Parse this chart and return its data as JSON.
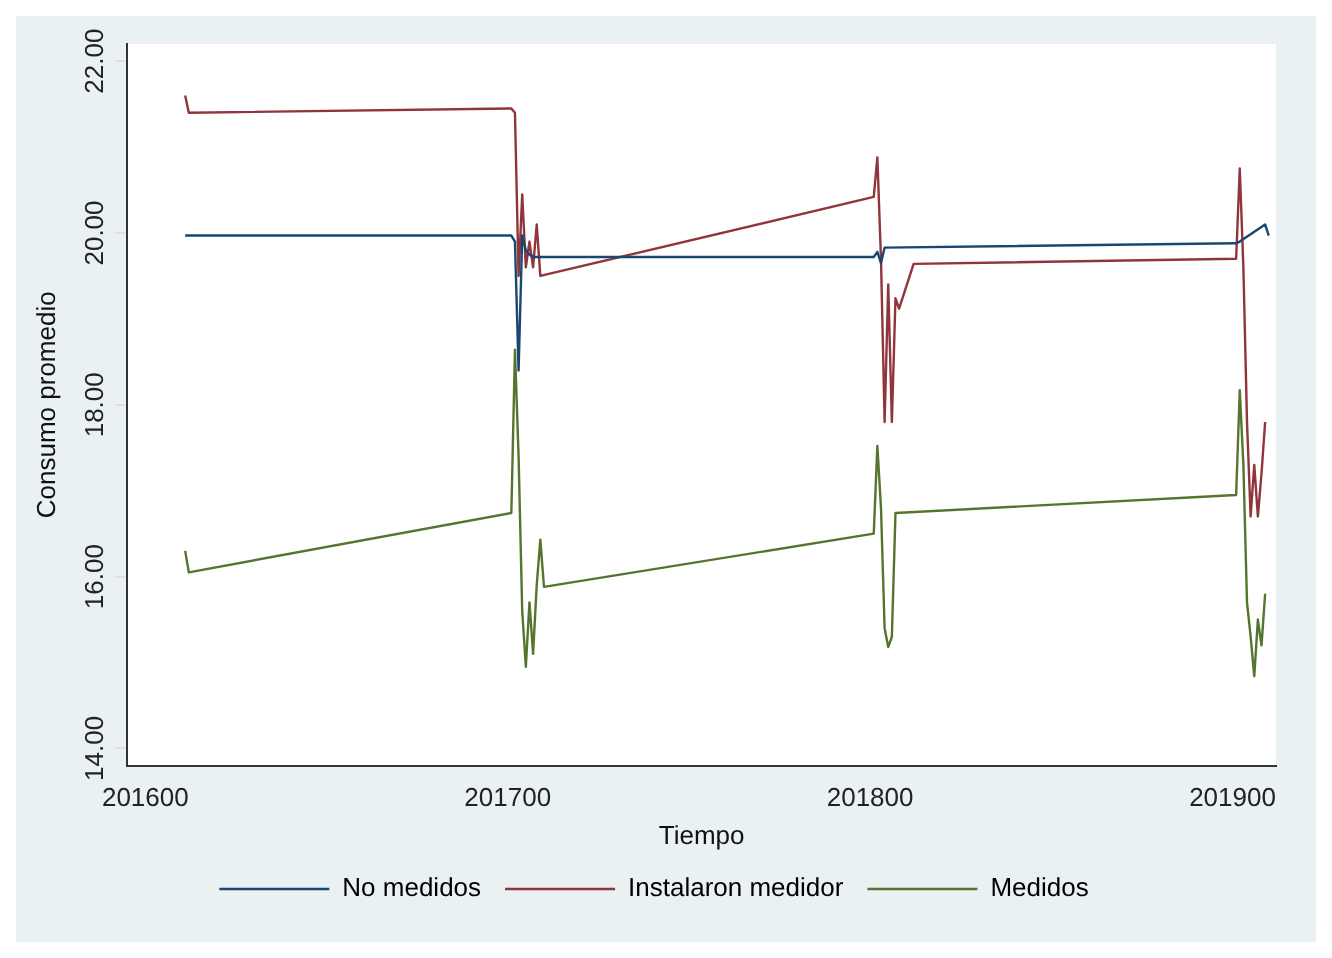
{
  "chart_data": {
    "type": "line",
    "xlabel": "Tiempo",
    "ylabel": "Consumo promedio",
    "xlim": [
      201595,
      201912
    ],
    "ylim": [
      13.8,
      22.2
    ],
    "xticks": [
      201600,
      201700,
      201800,
      201900
    ],
    "yticks": [
      {
        "value": 14,
        "label": "14.00"
      },
      {
        "value": 16,
        "label": "16.00"
      },
      {
        "value": 18,
        "label": "18.00"
      },
      {
        "value": 20,
        "label": "20.00"
      },
      {
        "value": 22,
        "label": "22.00"
      }
    ],
    "legend": "bottom",
    "marker": "none",
    "line_style": "solid",
    "series": [
      {
        "name": "No medidos",
        "color": "#1a476f",
        "x": [
          201611,
          201612,
          201701,
          201702,
          201703,
          201704,
          201705,
          201706,
          201707,
          201801,
          201802,
          201803,
          201804,
          201901,
          201902,
          201909,
          201910
        ],
        "values": [
          19.97,
          19.97,
          19.97,
          19.9,
          18.4,
          19.97,
          19.8,
          19.75,
          19.72,
          19.72,
          19.78,
          19.65,
          19.83,
          19.88,
          19.9,
          20.1,
          19.97
        ]
      },
      {
        "name": "Instalaron medidor",
        "color": "#90353b",
        "x": [
          201611,
          201612,
          201701,
          201702,
          201703,
          201704,
          201705,
          201706,
          201707,
          201708,
          201709,
          201801,
          201802,
          201803,
          201804,
          201805,
          201806,
          201807,
          201808,
          201812,
          201901,
          201902,
          201903,
          201904,
          201905,
          201906,
          201907,
          201908,
          201909
        ],
        "values": [
          21.6,
          21.4,
          21.45,
          21.4,
          19.5,
          20.45,
          19.6,
          19.9,
          19.6,
          20.1,
          19.5,
          20.42,
          20.88,
          19.7,
          17.8,
          19.4,
          17.8,
          19.24,
          19.12,
          19.64,
          19.7,
          20.75,
          19.6,
          17.8,
          16.7,
          17.3,
          16.7,
          17.2,
          17.8
        ]
      },
      {
        "name": "Medidos",
        "color": "#55752f",
        "x": [
          201611,
          201612,
          201701,
          201702,
          201703,
          201704,
          201705,
          201706,
          201707,
          201708,
          201709,
          201710,
          201801,
          201802,
          201803,
          201804,
          201805,
          201806,
          201807,
          201901,
          201902,
          201903,
          201904,
          201905,
          201906,
          201907,
          201908,
          201909
        ],
        "values": [
          16.3,
          16.05,
          16.74,
          18.64,
          17.4,
          15.6,
          14.95,
          15.7,
          15.1,
          15.9,
          16.43,
          15.88,
          16.5,
          17.52,
          16.8,
          15.4,
          15.18,
          15.3,
          16.74,
          16.95,
          18.17,
          17.3,
          15.7,
          15.3,
          14.84,
          15.5,
          15.2,
          15.8
        ]
      }
    ]
  }
}
